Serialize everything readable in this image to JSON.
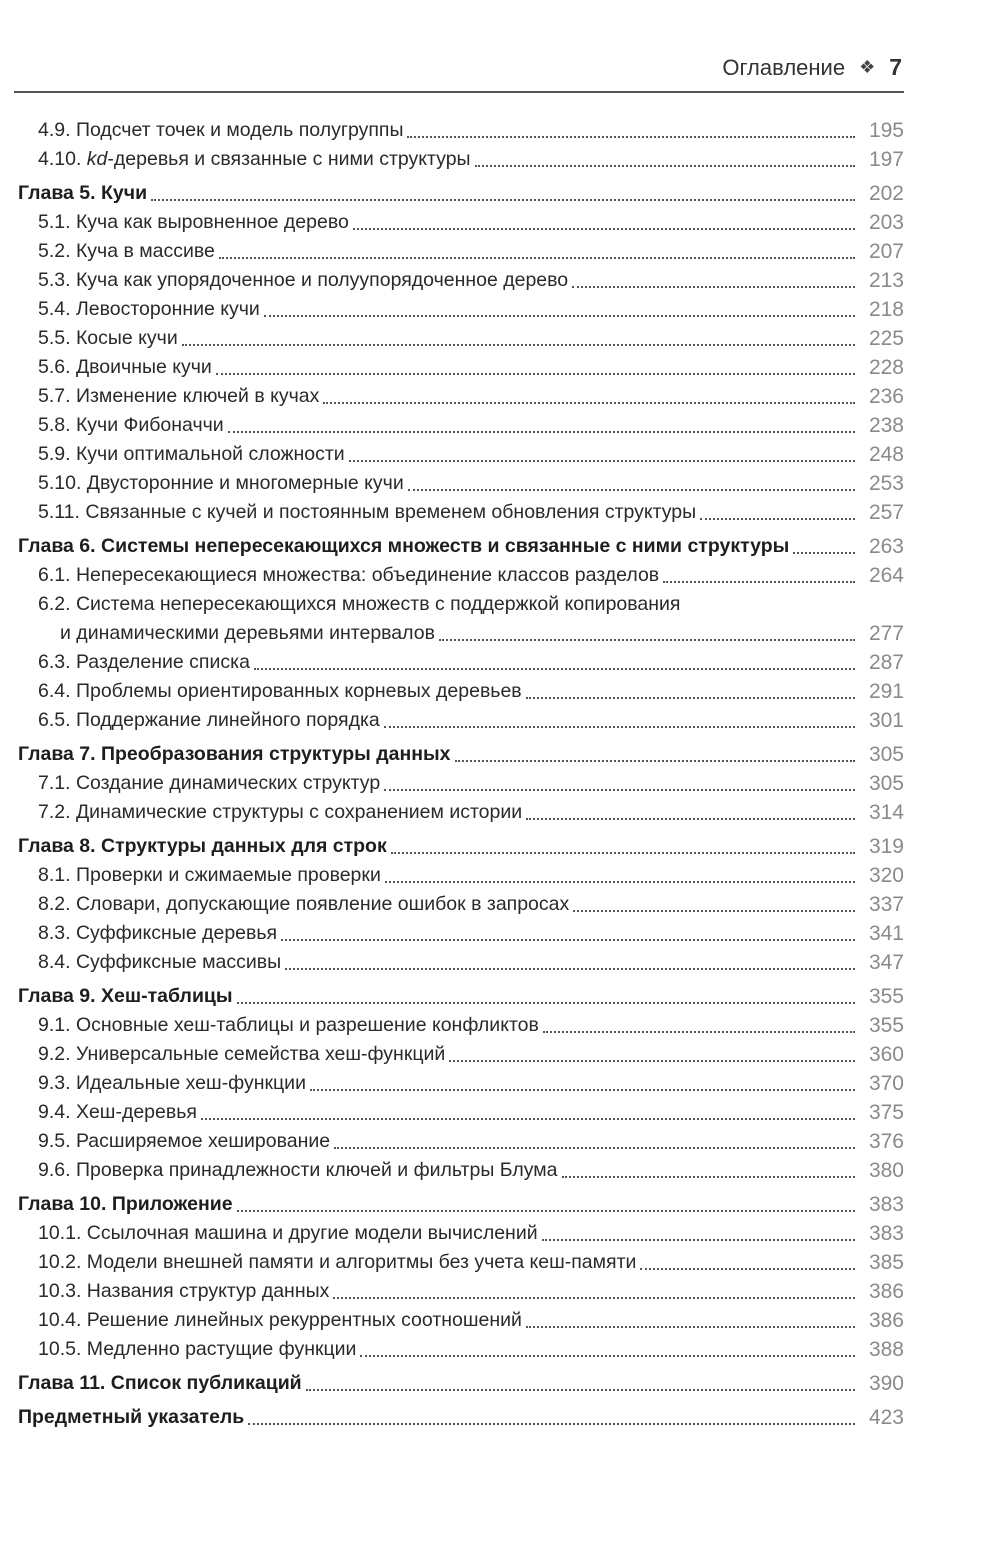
{
  "header": {
    "title": "Оглавление",
    "ornament": "❖",
    "page_number": "7"
  },
  "entries": [
    {
      "type": "section",
      "num": "4.9.",
      "title": "Подсчет точек и модель полугруппы",
      "page": "195"
    },
    {
      "type": "section",
      "num": "4.10.",
      "italic": "kd",
      "title": "-деревья и связанные с ними структуры",
      "page": "197"
    },
    {
      "type": "chapter",
      "num": "Глава 5.",
      "title": "Кучи",
      "page": "202"
    },
    {
      "type": "section",
      "num": "5.1.",
      "title": "Куча как выровненное дерево",
      "page": "203"
    },
    {
      "type": "section",
      "num": "5.2.",
      "title": "Куча в массиве",
      "page": "207"
    },
    {
      "type": "section",
      "num": "5.3.",
      "title": "Куча как упорядоченное и полуупорядоченное дерево",
      "page": "213"
    },
    {
      "type": "section",
      "num": "5.4.",
      "title": "Левосторонние кучи",
      "page": "218"
    },
    {
      "type": "section",
      "num": "5.5.",
      "title": "Косые кучи",
      "page": "225"
    },
    {
      "type": "section",
      "num": "5.6.",
      "title": "Двоичные кучи",
      "page": "228"
    },
    {
      "type": "section",
      "num": "5.7.",
      "title": "Изменение ключей в кучах",
      "page": "236"
    },
    {
      "type": "section",
      "num": "5.8.",
      "title": "Кучи Фибоначчи",
      "page": "238"
    },
    {
      "type": "section",
      "num": "5.9.",
      "title": "Кучи оптимальной сложности",
      "page": "248"
    },
    {
      "type": "section",
      "num": "5.10.",
      "title": "Двусторонние и многомерные кучи",
      "page": "253"
    },
    {
      "type": "section",
      "num": "5.11.",
      "title": "Связанные с кучей и постоянным временем обновления структуры",
      "page": "257"
    },
    {
      "type": "chapter",
      "num": "Глава 6.",
      "title": "Системы непересекающихся множеств и связанные с ними структуры",
      "page": "263"
    },
    {
      "type": "section",
      "num": "6.1.",
      "title": "Непересекающиеся множества: объединение классов разделов",
      "page": "264"
    },
    {
      "type": "section",
      "num": "6.2.",
      "title": "Система непересекающихся множеств с поддержкой копирования",
      "continuation": "и динамическими деревьями интервалов",
      "page": "277"
    },
    {
      "type": "section",
      "num": "6.3.",
      "title": "Разделение списка",
      "page": "287"
    },
    {
      "type": "section",
      "num": "6.4.",
      "title": "Проблемы ориентированных корневых деревьев",
      "page": "291"
    },
    {
      "type": "section",
      "num": "6.5.",
      "title": "Поддержание линейного порядка",
      "page": "301"
    },
    {
      "type": "chapter",
      "num": "Глава 7.",
      "title": "Преобразования структуры данных",
      "page": "305"
    },
    {
      "type": "section",
      "num": "7.1.",
      "title": "Создание динамических структур",
      "page": "305"
    },
    {
      "type": "section",
      "num": "7.2.",
      "title": "Динамические структуры с сохранением истории",
      "page": "314"
    },
    {
      "type": "chapter",
      "num": "Глава 8.",
      "title": "Структуры данных для строк",
      "page": "319"
    },
    {
      "type": "section",
      "num": "8.1.",
      "title": "Проверки и сжимаемые проверки",
      "page": "320"
    },
    {
      "type": "section",
      "num": "8.2.",
      "title": "Словари, допускающие появление ошибок в запросах",
      "page": "337"
    },
    {
      "type": "section",
      "num": "8.3.",
      "title": "Суффиксные деревья",
      "page": "341"
    },
    {
      "type": "section",
      "num": "8.4.",
      "title": "Суффиксные массивы",
      "page": "347"
    },
    {
      "type": "chapter",
      "num": "Глава 9.",
      "title": "Хеш-таблицы",
      "page": "355"
    },
    {
      "type": "section",
      "num": "9.1.",
      "title": "Основные хеш-таблицы и разрешение конфликтов",
      "page": "355"
    },
    {
      "type": "section",
      "num": "9.2.",
      "title": "Универсальные семейства хеш-функций",
      "page": "360"
    },
    {
      "type": "section",
      "num": "9.3.",
      "title": "Идеальные хеш-функции",
      "page": "370"
    },
    {
      "type": "section",
      "num": "9.4.",
      "title": "Хеш-деревья",
      "page": "375"
    },
    {
      "type": "section",
      "num": "9.5.",
      "title": "Расширяемое хеширование",
      "page": "376"
    },
    {
      "type": "section",
      "num": "9.6.",
      "title": "Проверка принадлежности ключей и фильтры Блума",
      "page": "380"
    },
    {
      "type": "chapter",
      "num": "Глава 10.",
      "title": "Приложение",
      "page": "383"
    },
    {
      "type": "section",
      "num": "10.1.",
      "title": "Ссылочная машина и другие модели вычислений",
      "page": "383"
    },
    {
      "type": "section",
      "num": "10.2.",
      "title": "Модели внешней памяти и алгоритмы без учета кеш-памяти",
      "page": "385"
    },
    {
      "type": "section",
      "num": "10.3.",
      "title": "Названия структур данных",
      "page": "386"
    },
    {
      "type": "section",
      "num": "10.4.",
      "title": "Решение линейных рекуррентных соотношений",
      "page": "386"
    },
    {
      "type": "section",
      "num": "10.5.",
      "title": "Медленно растущие функции",
      "page": "388"
    },
    {
      "type": "chapter",
      "num": "Глава 11.",
      "title": "Список публикаций",
      "page": "390"
    },
    {
      "type": "chapter",
      "num": "",
      "title": "Предметный указатель",
      "page": "423"
    }
  ]
}
